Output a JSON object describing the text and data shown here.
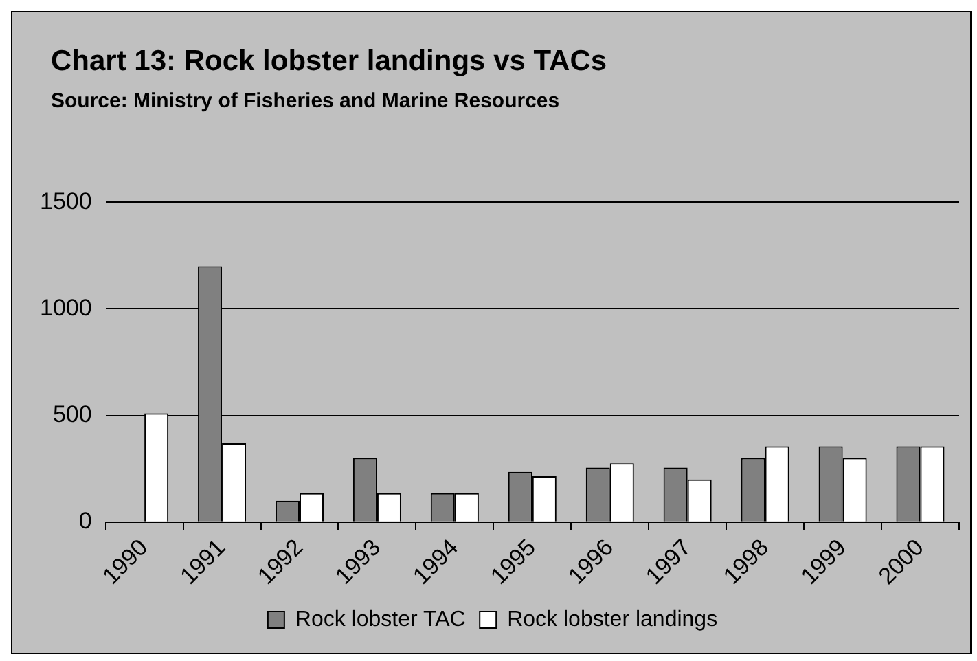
{
  "chart_data": {
    "type": "bar",
    "title": "Chart 13: Rock lobster landings vs TACs",
    "subtitle": "Source: Ministry of Fisheries and Marine Resources",
    "categories": [
      "1990",
      "1991",
      "1992",
      "1993",
      "1994",
      "1995",
      "1996",
      "1997",
      "1998",
      "1999",
      "2000"
    ],
    "series": [
      {
        "name": "Rock lobster TAC",
        "color": "#808080",
        "values": [
          null,
          1200,
          100,
          300,
          135,
          235,
          255,
          255,
          300,
          355,
          355
        ]
      },
      {
        "name": "Rock lobster landings",
        "color": "#ffffff",
        "values": [
          510,
          370,
          135,
          135,
          135,
          215,
          275,
          200,
          355,
          300,
          355
        ]
      }
    ],
    "ylim": [
      0,
      1500
    ],
    "yticks": [
      0,
      500,
      1000,
      1500
    ],
    "grid": "y",
    "legend": "bottom"
  }
}
